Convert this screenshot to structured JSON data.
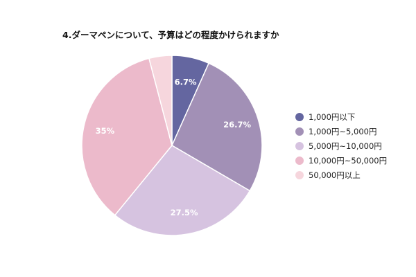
{
  "chart_data": {
    "type": "pie",
    "title": "4.ダーマペンについて、予算はどの程度かけられますか",
    "categories": [
      "1,000円以下",
      "1,000円~5,000円",
      "5,000円~10,000円",
      "10,000円~50,000円",
      "50,000円以上"
    ],
    "values": [
      6.7,
      26.7,
      27.5,
      35,
      4.1
    ],
    "data_labels": [
      "6.7%",
      "26.7%",
      "27.5%",
      "35%",
      ""
    ],
    "colors": [
      "#6466a0",
      "#a290b6",
      "#d6c3e0",
      "#ecbacb",
      "#f6d6dd"
    ],
    "start_angle_deg": 0,
    "direction": "clockwise",
    "legend_position": "right"
  }
}
